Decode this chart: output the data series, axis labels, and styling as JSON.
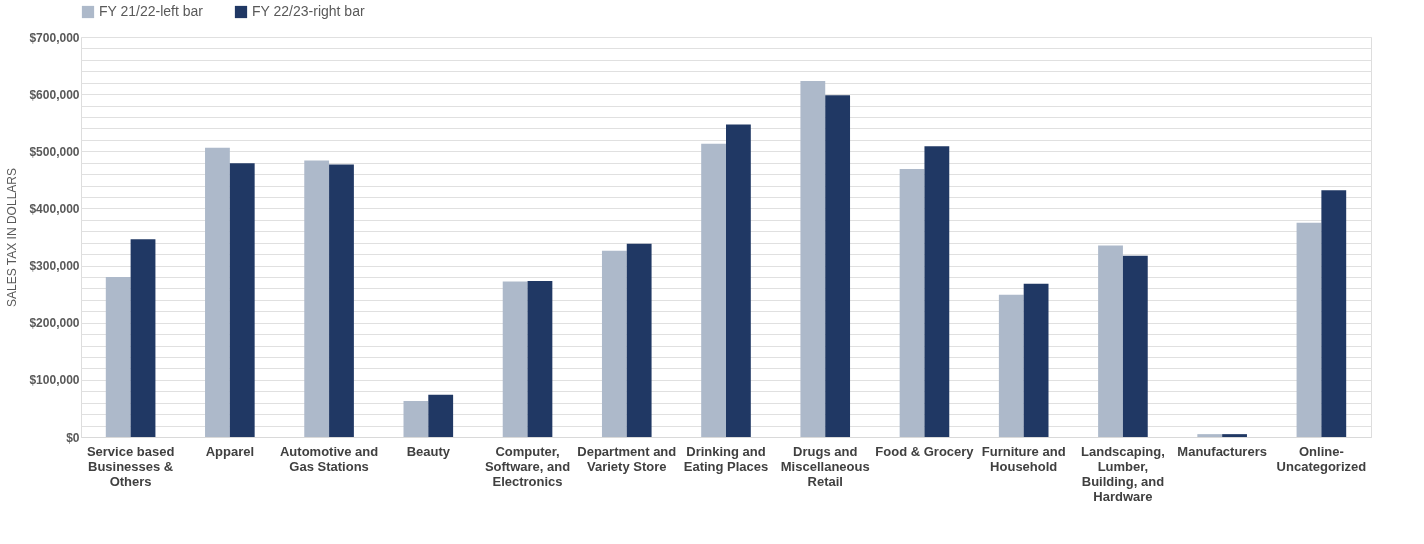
{
  "chart_data": {
    "type": "bar",
    "ylabel": "SALES TAX IN DOLLARS",
    "categories": [
      "Service based Businesses & Others",
      "Apparel",
      "Automotive and Gas Stations",
      "Beauty",
      "Computer, Software, and Electronics",
      "Department and Variety Store",
      "Drinking and Eating Places",
      "Drugs and Miscellaneous Retail",
      "Food & Grocery",
      "Furniture and Household",
      "Landscaping, Lumber, Building, and Hardware",
      "Manufacturers",
      "Online-Uncategorized"
    ],
    "series": [
      {
        "name": "FY 21/22-left bar",
        "color": "#adb9ca",
        "values": [
          280000,
          506000,
          484000,
          63000,
          272000,
          326000,
          513000,
          623000,
          469000,
          249000,
          335000,
          5000,
          375000
        ]
      },
      {
        "name": "FY 22/23-right bar",
        "color": "#203864",
        "values": [
          346000,
          479000,
          477000,
          74000,
          273000,
          338000,
          547000,
          598000,
          509000,
          268000,
          317000,
          5000,
          432000
        ]
      }
    ],
    "ylim": [
      0,
      700000
    ],
    "yticks": [
      {
        "value": 0,
        "label": "$0"
      },
      {
        "value": 20000,
        "label": null
      },
      {
        "value": 40000,
        "label": null
      },
      {
        "value": 60000,
        "label": null
      },
      {
        "value": 80000,
        "label": null
      },
      {
        "value": 100000,
        "label": "$100,000"
      },
      {
        "value": 120000,
        "label": null
      },
      {
        "value": 140000,
        "label": null
      },
      {
        "value": 160000,
        "label": null
      },
      {
        "value": 180000,
        "label": null
      },
      {
        "value": 200000,
        "label": "$200,000"
      },
      {
        "value": 220000,
        "label": null
      },
      {
        "value": 240000,
        "label": null
      },
      {
        "value": 260000,
        "label": null
      },
      {
        "value": 280000,
        "label": null
      },
      {
        "value": 300000,
        "label": "$300,000"
      },
      {
        "value": 320000,
        "label": null
      },
      {
        "value": 340000,
        "label": null
      },
      {
        "value": 360000,
        "label": null
      },
      {
        "value": 380000,
        "label": null
      },
      {
        "value": 400000,
        "label": "$400,000"
      },
      {
        "value": 420000,
        "label": null
      },
      {
        "value": 440000,
        "label": null
      },
      {
        "value": 460000,
        "label": null
      },
      {
        "value": 480000,
        "label": null
      },
      {
        "value": 500000,
        "label": "$500,000"
      },
      {
        "value": 520000,
        "label": null
      },
      {
        "value": 540000,
        "label": null
      },
      {
        "value": 560000,
        "label": null
      },
      {
        "value": 580000,
        "label": null
      },
      {
        "value": 600000,
        "label": "$600,000"
      },
      {
        "value": 620000,
        "label": null
      },
      {
        "value": 640000,
        "label": null
      },
      {
        "value": 660000,
        "label": null
      },
      {
        "value": 680000,
        "label": null
      },
      {
        "value": 700000,
        "label": "$700,000"
      }
    ],
    "grid": true,
    "legend": "top"
  }
}
